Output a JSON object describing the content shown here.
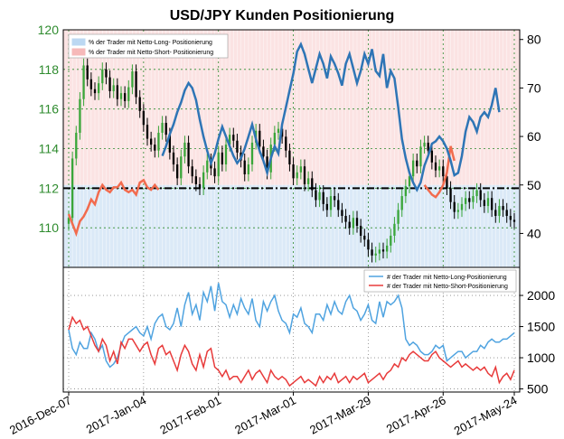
{
  "chart_data": [
    {
      "type": "candlestick+line",
      "title": "USD/JPY Kunden Positionierung",
      "left_axis": {
        "ticks": [
          110,
          112,
          114,
          116,
          118,
          120
        ],
        "range": [
          108,
          120
        ]
      },
      "right_axis": {
        "ticks": [
          40,
          50,
          60,
          70,
          80
        ],
        "range": [
          33,
          82
        ]
      },
      "reference_line": 112,
      "legend": [
        {
          "label": "% der Trader mit Netto-Long- Positionierung",
          "color": "#bcd8f2"
        },
        {
          "label": "% der Trader mit Netto-Short- Positionierung",
          "color": "#f6b9b9"
        }
      ],
      "price_close": [
        110.5,
        113.5,
        114.8,
        116.5,
        118.2,
        117.5,
        117.0,
        116.8,
        117.3,
        118.0,
        117.6,
        116.9,
        117.2,
        116.5,
        116.8,
        116.4,
        117.1,
        117.9,
        116.6,
        115.9,
        115.2,
        114.5,
        114.2,
        113.9,
        114.8,
        115.3,
        114.7,
        113.8,
        113.2,
        112.5,
        113.6,
        114.3,
        113.1,
        112.6,
        112.2,
        112.0,
        112.8,
        113.4,
        113.0,
        112.6,
        113.8,
        113.2,
        114.2,
        114.7,
        114.4,
        113.8,
        113.4,
        112.7,
        113.2,
        114.3,
        114.9,
        114.1,
        113.6,
        112.8,
        114.2,
        114.8,
        115.0,
        114.6,
        113.9,
        113.2,
        112.5,
        112.8,
        113.1,
        112.2,
        112.5,
        111.9,
        111.4,
        111.8,
        111.2,
        110.9,
        111.6,
        111.4,
        110.9,
        110.6,
        110.3,
        110.0,
        110.5,
        110.1,
        109.6,
        109.4,
        108.9,
        108.6,
        108.7,
        108.9,
        108.8,
        109.1,
        109.6,
        110.2,
        110.9,
        111.6,
        112.1,
        112.6,
        113.4,
        113.1,
        114.1,
        114.3,
        113.9,
        113.3,
        112.9,
        113.1,
        112.6,
        112.0,
        111.3,
        110.8,
        110.9,
        111.2,
        111.5,
        111.3,
        111.6,
        111.9,
        111.4,
        111.1,
        111.5,
        110.9,
        110.6,
        111.1,
        110.9,
        110.6,
        110.4,
        110.3
      ],
      "long_pct": [
        null,
        null,
        null,
        null,
        null,
        null,
        null,
        null,
        null,
        null,
        null,
        null,
        null,
        null,
        null,
        null,
        null,
        null,
        null,
        null,
        null,
        null,
        null,
        null,
        null,
        56.0,
        58.0,
        60.5,
        62.5,
        65.0,
        67.0,
        69.5,
        71.0,
        70.0,
        67.5,
        63.5,
        60.0,
        57.0,
        54.5,
        56.5,
        59.5,
        62.0,
        60.0,
        58.0,
        56.0,
        54.5,
        55.5,
        57.5,
        60.0,
        62.5,
        59.5,
        57.0,
        55.0,
        52.5,
        55.5,
        58.0,
        56.5,
        62.5,
        66.0,
        69.5,
        73.0,
        77.5,
        79.0,
        77.0,
        74.0,
        71.0,
        74.0,
        77.0,
        75.0,
        72.0,
        76.5,
        75.0,
        73.0,
        70.5,
        75.0,
        77.0,
        74.0,
        71.0,
        73.5,
        77.0,
        75.0,
        78.0,
        73.5,
        72.5,
        77.0,
        70.0,
        73.5,
        72.0,
        66.0,
        59.5,
        55.5,
        52.5,
        50.5,
        49.0,
        50.5,
        54.0,
        56.0,
        58.5,
        59.0,
        60.0,
        59.0,
        57.5,
        55.0,
        52.0,
        52.5,
        56.0,
        61.0,
        64.0,
        63.0,
        61.0,
        64.0,
        65.0,
        64.0,
        66.5,
        70.0,
        65.0
      ],
      "short_pct": [
        44.0,
        42.0,
        40.0,
        42.5,
        43.5,
        45.0,
        47.0,
        46.0,
        48.5,
        50.0,
        49.0,
        48.5,
        49.5,
        49.5,
        50.5,
        49.0,
        48.5,
        49.0,
        48.0,
        50.5,
        51.0,
        49.5,
        49.0,
        50.0,
        49.0,
        null,
        null,
        null,
        null,
        null,
        null,
        null,
        null,
        null,
        null,
        null,
        null,
        null,
        null,
        null,
        null,
        null,
        null,
        null,
        null,
        null,
        null,
        null,
        null,
        null,
        null,
        null,
        null,
        null,
        null,
        null,
        null,
        null,
        null,
        null,
        null,
        null,
        null,
        null,
        null,
        null,
        null,
        null,
        null,
        null,
        null,
        null,
        null,
        null,
        null,
        null,
        null,
        null,
        null,
        null,
        null,
        null,
        null,
        null,
        null,
        null,
        null,
        null,
        null,
        null,
        null,
        null,
        null,
        null,
        null,
        null,
        null,
        null,
        null,
        null,
        null,
        null,
        null,
        null,
        null,
        null,
        null,
        null,
        null,
        null,
        null,
        null,
        null,
        null,
        null,
        null
      ],
      "short_pct_late": [
        [
          95,
          50.0
        ],
        [
          96,
          49.0
        ],
        [
          97,
          48.0
        ],
        [
          98,
          47.5
        ],
        [
          99,
          48.5
        ],
        [
          100,
          50.0
        ],
        [
          101,
          52.5
        ],
        [
          102,
          58.0
        ],
        [
          103,
          55.0
        ]
      ]
    },
    {
      "type": "line",
      "right_axis": {
        "ticks": [
          500,
          1000,
          1500,
          2000
        ],
        "range": [
          450,
          2450
        ]
      },
      "legend": [
        {
          "label": "# der Trader mit Netto-Long-Positionierung",
          "color": "#4fa3e0"
        },
        {
          "label": "# der Trader mit Netto-Short-Positionierung",
          "color": "#e83a3a"
        }
      ],
      "long_count": [
        1450,
        1150,
        1050,
        1250,
        1150,
        1150,
        1400,
        1300,
        1100,
        1200,
        950,
        850,
        900,
        1000,
        1200,
        1350,
        1400,
        1450,
        1500,
        1400,
        1350,
        1500,
        1300,
        1550,
        1650,
        1700,
        1500,
        1450,
        1550,
        1800,
        1500,
        1850,
        2050,
        1700,
        1850,
        1600,
        2050,
        1900,
        2150,
        1750,
        2200,
        1900,
        1850,
        1650,
        1850,
        1700,
        1950,
        1800,
        1700,
        1950,
        1600,
        1500,
        1900,
        1750,
        1900,
        2000,
        1750,
        1600,
        1550,
        1400,
        1700,
        1650,
        1800,
        1550,
        1500,
        1400,
        1700,
        1700,
        1600,
        1850,
        1700,
        1900,
        1750,
        1700,
        1900,
        2000,
        1800,
        1750,
        1600,
        1700,
        1850,
        1600,
        1550,
        1900,
        1650,
        1900,
        1850,
        1900,
        2000,
        1800,
        1300,
        1200,
        1250,
        1200,
        1100,
        1050,
        1050,
        1100,
        1200,
        1150,
        1200,
        950,
        1000,
        1050,
        1100,
        1100,
        1000,
        1050,
        1100,
        1100,
        1200,
        1150,
        1250,
        1300,
        1250,
        1250,
        1300,
        1300,
        1350,
        1400
      ],
      "short_count": [
        1450,
        1650,
        1550,
        1600,
        1450,
        1500,
        1350,
        1200,
        1100,
        1300,
        1200,
        950,
        1100,
        900,
        1250,
        1150,
        1300,
        1300,
        1200,
        1100,
        1200,
        1250,
        1050,
        900,
        1150,
        1200,
        1050,
        1100,
        950,
        800,
        1050,
        1200,
        1100,
        900,
        800,
        1050,
        850,
        1100,
        1150,
        850,
        800,
        700,
        800,
        650,
        700,
        700,
        600,
        700,
        800,
        650,
        750,
        800,
        700,
        600,
        800,
        700,
        650,
        700,
        650,
        550,
        600,
        650,
        700,
        600,
        650,
        600,
        550,
        700,
        600,
        700,
        650,
        750,
        600,
        650,
        700,
        600,
        700,
        650,
        700,
        750,
        600,
        650,
        700,
        750,
        650,
        750,
        800,
        900,
        850,
        1000,
        950,
        1050,
        1100,
        1050,
        1000,
        950,
        950,
        1050,
        1100,
        1000,
        950,
        900,
        850,
        900,
        950,
        850,
        900,
        850,
        800,
        850,
        800,
        850,
        750,
        700,
        850,
        600,
        700,
        750,
        650,
        800
      ]
    }
  ],
  "x_axis": {
    "tick_labels": [
      "2016-Dec-07",
      "2017-Jan-04",
      "2017-Feb-01",
      "2017-Mar-01",
      "2017-Mar-29",
      "2017-Apr-26",
      "2017-May-24"
    ],
    "tick_indices": [
      0,
      20,
      40,
      60,
      80,
      100,
      120
    ]
  },
  "colors": {
    "long": "#2e75b6",
    "short": "#f26b4e",
    "candle_up": "#3aa63a",
    "candle_down": "#000000",
    "long_bg": "#dbe9f7",
    "short_bg": "#fbe3e3",
    "long_count": "#4fa3e0",
    "short_count": "#e83a3a"
  }
}
